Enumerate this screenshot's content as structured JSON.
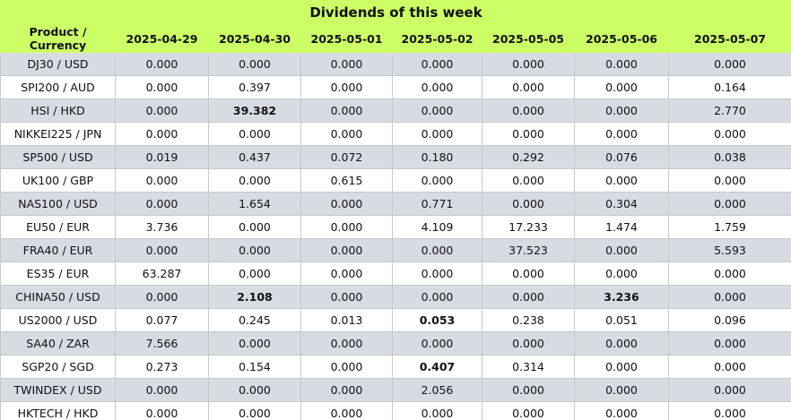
{
  "table": {
    "title": "Dividends of this week",
    "header": [
      "Product / Currency",
      "2025-04-29",
      "2025-04-30",
      "2025-05-01",
      "2025-05-02",
      "2025-05-05",
      "2025-05-06",
      "2025-05-07"
    ],
    "rows": [
      [
        "DJ30 / USD",
        "0.000",
        "0.000",
        "0.000",
        "0.000",
        "0.000",
        "0.000",
        "0.000"
      ],
      [
        "SPI200 / AUD",
        "0.000",
        "0.397",
        "0.000",
        "0.000",
        "0.000",
        "0.000",
        "0.164"
      ],
      [
        "HSI / HKD",
        "0.000",
        "39.382",
        "0.000",
        "0.000",
        "0.000",
        "0.000",
        "2.770"
      ],
      [
        "NIKKEI225 / JPN",
        "0.000",
        "0.000",
        "0.000",
        "0.000",
        "0.000",
        "0.000",
        "0.000"
      ],
      [
        "SP500 / USD",
        "0.019",
        "0.437",
        "0.072",
        "0.180",
        "0.292",
        "0.076",
        "0.038"
      ],
      [
        "UK100 / GBP",
        "0.000",
        "0.000",
        "0.615",
        "0.000",
        "0.000",
        "0.000",
        "0.000"
      ],
      [
        "NAS100 / USD",
        "0.000",
        "1.654",
        "0.000",
        "0.771",
        "0.000",
        "0.304",
        "0.000"
      ],
      [
        "EU50 / EUR",
        "3.736",
        "0.000",
        "0.000",
        "4.109",
        "17.233",
        "1.474",
        "1.759"
      ],
      [
        "FRA40 / EUR",
        "0.000",
        "0.000",
        "0.000",
        "0.000",
        "37.523",
        "0.000",
        "5.593"
      ],
      [
        "ES35 / EUR",
        "63.287",
        "0.000",
        "0.000",
        "0.000",
        "0.000",
        "0.000",
        "0.000"
      ],
      [
        "CHINA50 / USD",
        "0.000",
        "2.108",
        "0.000",
        "0.000",
        "0.000",
        "3.236",
        "0.000"
      ],
      [
        "US2000 / USD",
        "0.077",
        "0.245",
        "0.013",
        "0.053",
        "0.238",
        "0.051",
        "0.096"
      ],
      [
        "SA40 / ZAR",
        "7.566",
        "0.000",
        "0.000",
        "0.000",
        "0.000",
        "0.000",
        "0.000"
      ],
      [
        "SGP20 / SGD",
        "0.273",
        "0.154",
        "0.000",
        "0.407",
        "0.314",
        "0.000",
        "0.000"
      ],
      [
        "TWINDEX / USD",
        "0.000",
        "0.000",
        "0.000",
        "2.056",
        "0.000",
        "0.000",
        "0.000"
      ],
      [
        "HKTECH / HKD",
        "0.000",
        "0.000",
        "0.000",
        "0.000",
        "0.000",
        "0.000",
        "0.000"
      ]
    ],
    "bold_cells": [
      [
        2,
        2
      ],
      [
        10,
        2
      ],
      [
        10,
        6
      ],
      [
        11,
        4
      ],
      [
        13,
        4
      ]
    ]
  }
}
